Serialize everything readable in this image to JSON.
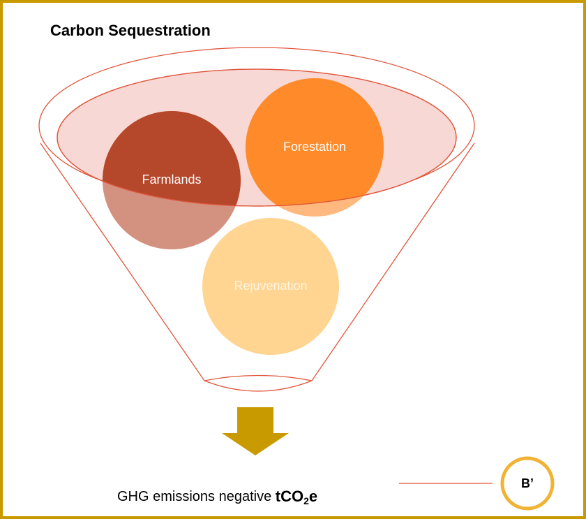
{
  "title": "Carbon Sequestration",
  "circles": [
    {
      "label": "Farmlands"
    },
    {
      "label": "Forestation"
    },
    {
      "label": "Rejuvenation"
    }
  ],
  "result": {
    "text": "GHG emissions negative",
    "unit_main": "tCO",
    "unit_sub": "2",
    "unit_end": "e"
  },
  "badge": {
    "label": "B’"
  }
}
